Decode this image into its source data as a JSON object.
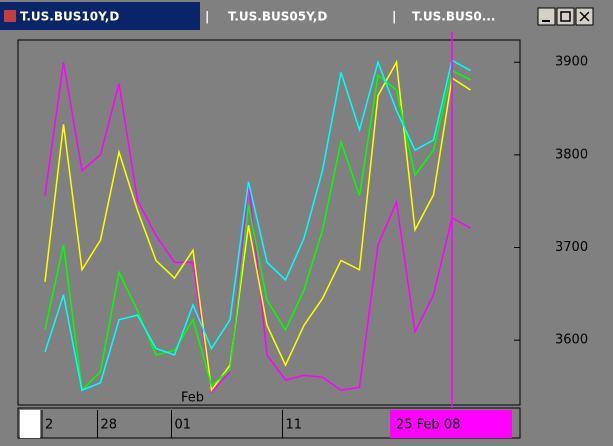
{
  "tabs": [
    "T.US.BUS10Y,D",
    "T.US.BUS05Y,D",
    "T.US.BUS0..."
  ],
  "chart_data": {
    "type": "line",
    "categories": [
      "2",
      null,
      null,
      "28",
      null,
      null,
      null,
      "01",
      null,
      null,
      null,
      null,
      null,
      "11",
      null,
      null,
      null,
      null,
      null,
      null,
      null,
      null,
      null,
      null
    ],
    "month_label": {
      "index": 8,
      "label": "Feb"
    },
    "cursor": {
      "index": 22,
      "label": "25 Feb 08",
      "color": "#ff00ff"
    },
    "ylim": [
      3530,
      3924
    ],
    "yticks": [
      3600,
      3700,
      3800,
      3900
    ],
    "series": [
      {
        "color": "#ff00ff",
        "values": [
          3756,
          3900,
          3783,
          3800,
          3877,
          3751,
          3713,
          3684,
          3684,
          3544,
          3566,
          3771,
          3584,
          3557,
          3562,
          3560,
          3546,
          3549,
          3703,
          3749,
          3609,
          3649,
          3732,
          3721
        ]
      },
      {
        "color": "#ffff00",
        "values": [
          3663,
          3833,
          3676,
          3708,
          3803,
          3740,
          3686,
          3667,
          3697,
          3546,
          3573,
          3724,
          3616,
          3573,
          3616,
          3645,
          3686,
          3676,
          3864,
          3900,
          3719,
          3757,
          3883,
          3870
        ]
      },
      {
        "color": "#00ff00",
        "values": [
          3611,
          3703,
          3546,
          3566,
          3673,
          3632,
          3584,
          3589,
          3622,
          3551,
          3568,
          3746,
          3643,
          3611,
          3654,
          3719,
          3814,
          3756,
          3886,
          3870,
          3778,
          3805,
          3891,
          3881
        ]
      },
      {
        "color": "#00ffff",
        "values": [
          3587,
          3649,
          3546,
          3554,
          3622,
          3627,
          3591,
          3584,
          3638,
          3591,
          3622,
          3771,
          3684,
          3665,
          3710,
          3783,
          3889,
          3827,
          3900,
          3848,
          3805,
          3816,
          3902,
          3891
        ]
      }
    ]
  }
}
